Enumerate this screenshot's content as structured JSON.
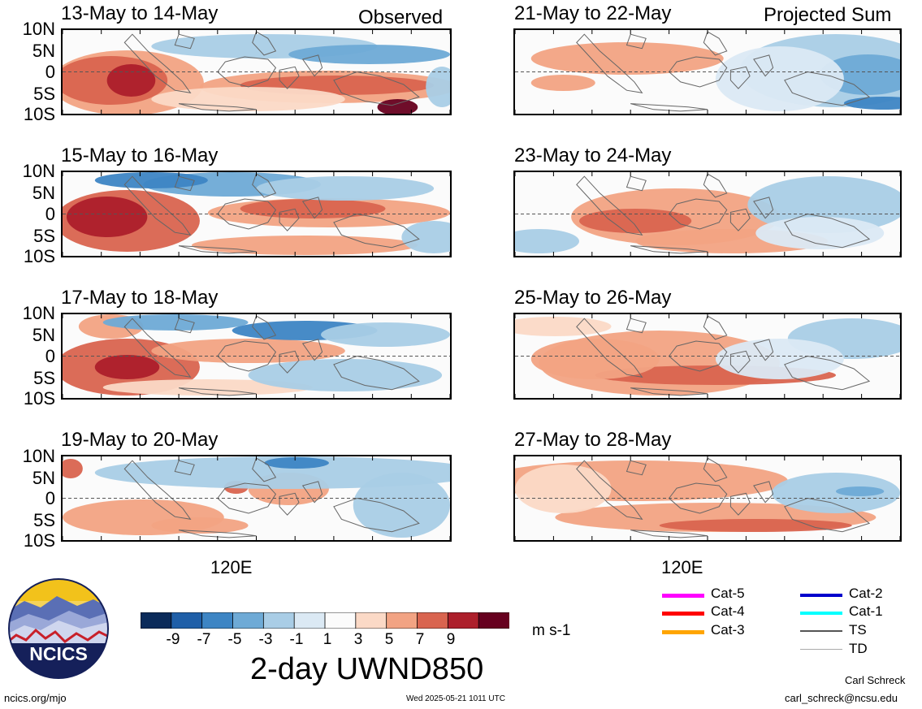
{
  "section_labels": {
    "left": "Observed",
    "right": "Projected Sum"
  },
  "panels_left": [
    {
      "title": "13-May to 14-May"
    },
    {
      "title": "15-May to 16-May"
    },
    {
      "title": "17-May to 18-May"
    },
    {
      "title": "19-May to 20-May"
    }
  ],
  "panels_right": [
    {
      "title": "21-May to 22-May"
    },
    {
      "title": "23-May to 24-May"
    },
    {
      "title": "25-May to 26-May"
    },
    {
      "title": "27-May to 28-May"
    }
  ],
  "lat_ticks": [
    "10N",
    "5N",
    "0",
    "5S",
    "10S"
  ],
  "lon_tick_label": "120E",
  "colorbar": {
    "labels": [
      "-9",
      "-7",
      "-5",
      "-3",
      "-1",
      "1",
      "3",
      "5",
      "7",
      "9"
    ],
    "colors": [
      "#0b2b5a",
      "#1f5fa8",
      "#3d85c4",
      "#6eaad6",
      "#a9cde6",
      "#dbe9f4",
      "#fbfbfb",
      "#fbd9c6",
      "#f2a383",
      "#d9644f",
      "#ad1f2b",
      "#67001f"
    ],
    "units": "m s-1",
    "title": "2-day UWND850"
  },
  "legend": {
    "items": [
      {
        "label": "Cat-5",
        "color": "#ff00ff"
      },
      {
        "label": "Cat-4",
        "color": "#ff0000"
      },
      {
        "label": "Cat-3",
        "color": "#ffa500"
      },
      {
        "label": "Cat-2",
        "color": "#0000cc"
      },
      {
        "label": "Cat-1",
        "color": "#00ffff"
      },
      {
        "label": "TS",
        "color": "#555555"
      },
      {
        "label": "TD",
        "color": "#aaaaaa"
      }
    ]
  },
  "logo": {
    "text": "NCICS"
  },
  "footer": {
    "url": "ncics.org/mjo",
    "timestamp": "Wed 2025-05-21 1011 UTC",
    "author": "Carl Schreck",
    "email": "carl_schreck@ncsu.edu"
  }
}
